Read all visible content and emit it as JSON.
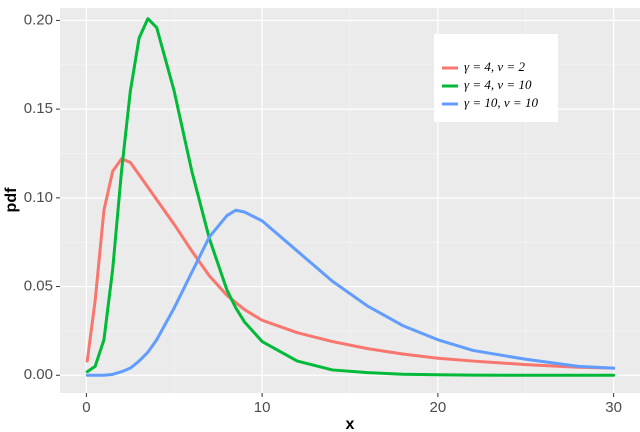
{
  "chart_data": {
    "type": "line",
    "x_label": "x",
    "y_label": "pdf",
    "x": [
      0.05,
      0.5,
      1,
      1.5,
      2,
      2.5,
      3,
      3.5,
      4,
      5,
      6,
      7,
      8,
      8.5,
      9,
      10,
      12,
      14,
      16,
      18,
      20,
      22,
      25,
      28,
      30
    ],
    "series": [
      {
        "name": "γ = 4, ν = 2",
        "color": "#f8766d",
        "values": [
          0.008,
          0.042,
          0.093,
          0.115,
          0.122,
          0.12,
          0.113,
          0.106,
          0.099,
          0.085,
          0.07,
          0.056,
          0.045,
          0.041,
          0.037,
          0.031,
          0.024,
          0.019,
          0.015,
          0.012,
          0.0096,
          0.008,
          0.006,
          0.0045,
          0.004
        ]
      },
      {
        "name": "γ = 4, ν = 10",
        "color": "#00ba38",
        "values": [
          0.002,
          0.005,
          0.02,
          0.06,
          0.115,
          0.16,
          0.19,
          0.201,
          0.196,
          0.16,
          0.115,
          0.077,
          0.048,
          0.038,
          0.03,
          0.019,
          0.008,
          0.003,
          0.0015,
          0.0006,
          0.0003,
          0.0001,
          0,
          0,
          0
        ]
      },
      {
        "name": "γ = 10, ν = 10",
        "color": "#619cff",
        "values": [
          0,
          0,
          0,
          0.0005,
          0.002,
          0.004,
          0.008,
          0.013,
          0.02,
          0.038,
          0.058,
          0.078,
          0.09,
          0.093,
          0.092,
          0.087,
          0.07,
          0.053,
          0.039,
          0.028,
          0.02,
          0.014,
          0.009,
          0.005,
          0.004
        ]
      }
    ],
    "xlim": [
      -1.5,
      31.5
    ],
    "xticks": [
      0,
      10,
      20,
      30
    ],
    "ylim": [
      -0.01,
      0.207
    ],
    "yticks": [
      {
        "value": 0,
        "label": "0.00"
      },
      {
        "value": 0.05,
        "label": "0.05"
      },
      {
        "value": 0.1,
        "label": "0.10"
      },
      {
        "value": 0.15,
        "label": "0.15"
      },
      {
        "value": 0.2,
        "label": "0.20"
      }
    ],
    "grid": true,
    "legend": "top-right"
  }
}
